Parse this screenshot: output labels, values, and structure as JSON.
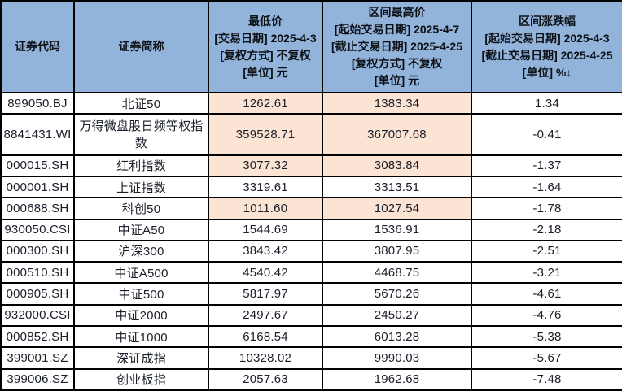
{
  "table": {
    "sort_indicator": "↓",
    "colors": {
      "header_bg": "#92b4da",
      "highlight_bg": "#fce4d4",
      "border": "#000000",
      "text": "#191e28",
      "row_bg": "#ffffff"
    },
    "columns": [
      {
        "header": "证券代码"
      },
      {
        "header": "证券简称"
      },
      {
        "header": "最低价\n[交易日期] 2025-4-3\n[复权方式] 不复权\n[单位] 元"
      },
      {
        "header": "区间最高价\n[起始交易日期] 2025-4-7\n[截止交易日期] 2025-4-25\n[复权方式] 不复权\n[单位] 元"
      },
      {
        "header": "区间涨跌幅\n[起始交易日期] 2025-4-3\n[截止交易日期] 2025-4-25\n[单位] %"
      }
    ],
    "rows": [
      {
        "code": "899050.BJ",
        "name": "北证50",
        "low": "1262.61",
        "high": "1383.34",
        "chg": "1.34",
        "highlight": true
      },
      {
        "code": "8841431.WI",
        "name": "万得微盘股日频等权指数",
        "low": "359528.71",
        "high": "367007.68",
        "chg": "-0.41",
        "highlight": true
      },
      {
        "code": "000015.SH",
        "name": "红利指数",
        "low": "3077.32",
        "high": "3083.84",
        "chg": "-1.37",
        "highlight": true
      },
      {
        "code": "000001.SH",
        "name": "上证指数",
        "low": "3319.61",
        "high": "3313.51",
        "chg": "-1.64",
        "highlight": false
      },
      {
        "code": "000688.SH",
        "name": "科创50",
        "low": "1011.60",
        "high": "1027.54",
        "chg": "-1.78",
        "highlight": true
      },
      {
        "code": "930050.CSI",
        "name": "中证A50",
        "low": "1544.69",
        "high": "1536.91",
        "chg": "-2.18",
        "highlight": false
      },
      {
        "code": "000300.SH",
        "name": "沪深300",
        "low": "3843.42",
        "high": "3807.95",
        "chg": "-2.51",
        "highlight": false
      },
      {
        "code": "000510.SH",
        "name": "中证A500",
        "low": "4540.42",
        "high": "4468.75",
        "chg": "-3.21",
        "highlight": false
      },
      {
        "code": "000905.SH",
        "name": "中证500",
        "low": "5817.97",
        "high": "5670.26",
        "chg": "-4.61",
        "highlight": false
      },
      {
        "code": "932000.CSI",
        "name": "中证2000",
        "low": "2497.67",
        "high": "2450.27",
        "chg": "-4.76",
        "highlight": false
      },
      {
        "code": "000852.SH",
        "name": "中证1000",
        "low": "6168.54",
        "high": "6013.28",
        "chg": "-5.38",
        "highlight": false
      },
      {
        "code": "399001.SZ",
        "name": "深证成指",
        "low": "10328.02",
        "high": "9990.03",
        "chg": "-5.67",
        "highlight": false
      },
      {
        "code": "399006.SZ",
        "name": "创业板指",
        "low": "2057.63",
        "high": "1962.68",
        "chg": "-7.48",
        "highlight": false
      }
    ]
  }
}
